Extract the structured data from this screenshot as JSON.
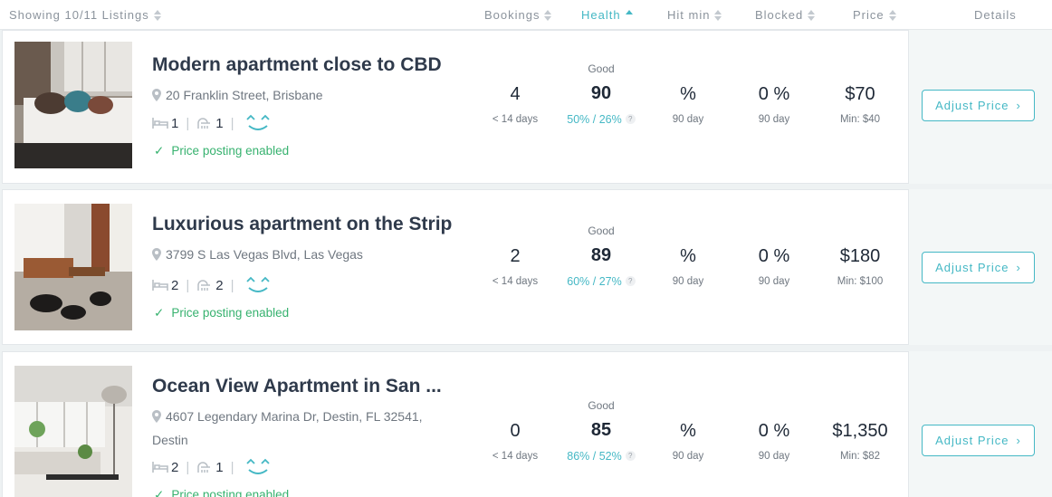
{
  "header": {
    "showing": "Showing 10/11 Listings",
    "columns": {
      "bookings": "Bookings",
      "health": "Health",
      "hit_min": "Hit min",
      "blocked": "Blocked",
      "price": "Price",
      "details": "Details"
    }
  },
  "listings": [
    {
      "title": "Modern apartment close to CBD",
      "address": "20 Franklin Street, Brisbane",
      "bedrooms": "1",
      "bathrooms": "1",
      "posting": "Price posting enabled",
      "bookings": "4",
      "bookings_sub": "< 14 days",
      "health_label": "Good",
      "health": "90",
      "health_pct": "50% / 26%",
      "hit_min": "%",
      "hit_min_sub": "90 day",
      "blocked": "0 %",
      "blocked_sub": "90 day",
      "price": "$70",
      "price_min": "Min: $40",
      "button": "Adjust Price"
    },
    {
      "title": "Luxurious apartment on the Strip",
      "address": "3799 S Las Vegas Blvd, Las Vegas",
      "bedrooms": "2",
      "bathrooms": "2",
      "posting": "Price posting enabled",
      "bookings": "2",
      "bookings_sub": "< 14 days",
      "health_label": "Good",
      "health": "89",
      "health_pct": "60% / 27%",
      "hit_min": "%",
      "hit_min_sub": "90 day",
      "blocked": "0 %",
      "blocked_sub": "90 day",
      "price": "$180",
      "price_min": "Min: $100",
      "button": "Adjust Price"
    },
    {
      "title": "Ocean View Apartment in San ...",
      "address": "4607 Legendary Marina Dr, Destin, FL 32541, Destin",
      "bedrooms": "2",
      "bathrooms": "1",
      "posting": "Price posting enabled",
      "bookings": "0",
      "bookings_sub": "< 14 days",
      "health_label": "Good",
      "health": "85",
      "health_pct": "86% / 52%",
      "hit_min": "%",
      "hit_min_sub": "90 day",
      "blocked": "0 %",
      "blocked_sub": "90 day",
      "price": "$1,350",
      "price_min": "Min: $82",
      "button": "Adjust Price"
    }
  ],
  "icons": {
    "location": "map-pin-icon",
    "bedroom": "bed-icon",
    "bathroom": "shower-icon",
    "rating": "smile-face-icon",
    "posting": "checkmark-icon",
    "sort": "sort-arrows-icon"
  },
  "colors": {
    "accent": "#45b8c5",
    "success": "#37b26f",
    "text": "#2b3545"
  }
}
